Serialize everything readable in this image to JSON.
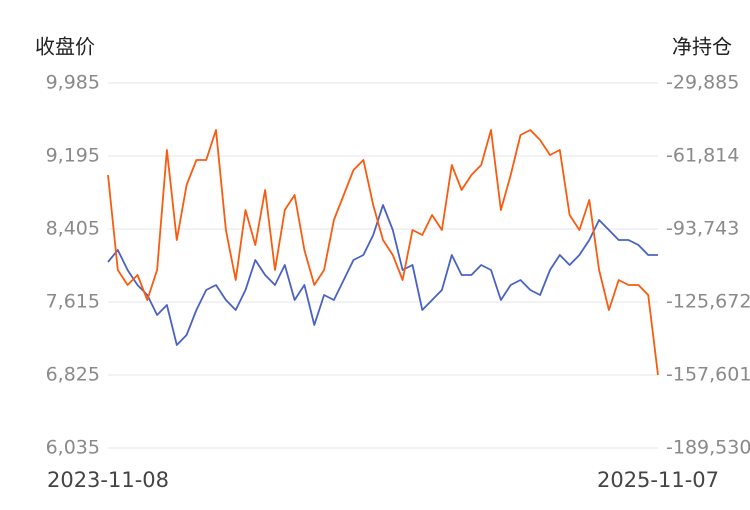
{
  "chart_data": {
    "type": "line",
    "y_label": "收盘价",
    "y2_label": "净持仓",
    "categories": [
      "2023-11-08",
      null,
      null,
      null,
      null,
      null,
      null,
      null,
      null,
      null,
      null,
      null,
      null,
      null,
      null,
      null,
      null,
      null,
      null,
      null,
      null,
      null,
      null,
      null,
      null,
      null,
      null,
      null,
      null,
      null,
      null,
      null,
      null,
      null,
      null,
      null,
      null,
      null,
      null,
      null,
      null,
      null,
      null,
      null,
      null,
      null,
      null,
      null,
      null,
      null,
      null,
      null,
      null,
      null,
      null,
      null,
      "2025-11-07"
    ],
    "series": [
      {
        "color": "#4a62c4",
        "axis": "y",
        "values": [
          8048,
          8178,
          7961,
          7799,
          7691,
          7474,
          7583,
          7150,
          7258,
          7528,
          7745,
          7799,
          7637,
          7528,
          7745,
          8070,
          7907,
          7799,
          8015,
          7637,
          7799,
          7366,
          7691,
          7637,
          7853,
          8070,
          8124,
          8340,
          8665,
          8394,
          7961,
          8015,
          7528,
          7637,
          7745,
          8124,
          7907,
          7907,
          8015,
          7961,
          7637,
          7799,
          7853,
          7745,
          7691,
          7961,
          8124,
          8015,
          8124,
          8286,
          8502,
          8394,
          8286,
          8286,
          8232,
          8124,
          8124
        ]
      },
      {
        "color": "#f95b0f",
        "axis": "y2",
        "values": [
          -70126,
          -111679,
          -118240,
          -113866,
          -124801,
          -111679,
          -59191,
          -98557,
          -74500,
          -63565,
          -63565,
          -50443,
          -94183,
          -116053,
          -85435,
          -100744,
          -76687,
          -111679,
          -85435,
          -78874,
          -102931,
          -118240,
          -111679,
          -89809,
          -78874,
          -67939,
          -63565,
          -83248,
          -98557,
          -105118,
          -116053,
          -94183,
          -96370,
          -87622,
          -94183,
          -65752,
          -76687,
          -70126,
          -65752,
          -50443,
          -85435,
          -70126,
          -52630,
          -50443,
          -54817,
          -61378,
          -59191,
          -87622,
          -94183,
          -81061,
          -111679,
          -129175,
          -116053,
          -118240,
          -118240,
          -122614,
          -157606
        ]
      }
    ],
    "ylim": [
      6035,
      9985
    ],
    "yticks": [
      {
        "value": 6035,
        "label": "6,035"
      },
      {
        "value": 6825,
        "label": "6,825"
      },
      {
        "value": 7615,
        "label": "7,615"
      },
      {
        "value": 8405,
        "label": "8,405"
      },
      {
        "value": 9195,
        "label": "9,195"
      },
      {
        "value": 9985,
        "label": "9,985"
      }
    ],
    "y2lim": [
      -189530,
      -29885
    ],
    "y2ticks": [
      {
        "value": -189530,
        "label": "-189,530"
      },
      {
        "value": -157601,
        "label": "-157,601"
      },
      {
        "value": -125672,
        "label": "-125,672"
      },
      {
        "value": -93743,
        "label": "-93,743"
      },
      {
        "value": -61814,
        "label": "-61,814"
      },
      {
        "value": -29885,
        "label": "-29,885"
      }
    ],
    "grid": true
  }
}
